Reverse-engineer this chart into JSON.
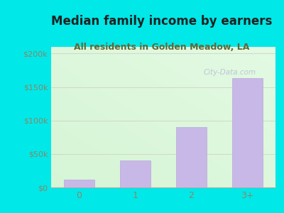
{
  "categories": [
    "0",
    "1",
    "2",
    "3+"
  ],
  "values": [
    12000,
    40000,
    90000,
    163000
  ],
  "bar_color": "#c8b8e8",
  "bar_edge_color": "#b8a8d8",
  "title": "Median family income by earners",
  "subtitle": "All residents in Golden Meadow, LA",
  "title_color": "#222222",
  "subtitle_color": "#666633",
  "outer_bg_color": "#00e8e8",
  "plot_bg_left": "#d8efd0",
  "plot_bg_right": "#f5fff5",
  "plot_bg_top": "#d8efd0",
  "plot_bg_bottom": "#eefaee",
  "tick_color": "#888866",
  "ytick_labels": [
    "$0",
    "$50k",
    "$100k",
    "$150k",
    "$200k"
  ],
  "ytick_values": [
    0,
    50000,
    100000,
    150000,
    200000
  ],
  "ylim": [
    0,
    210000
  ],
  "watermark": "City-Data.com",
  "title_fontsize": 12,
  "subtitle_fontsize": 9,
  "bar_width": 0.55
}
